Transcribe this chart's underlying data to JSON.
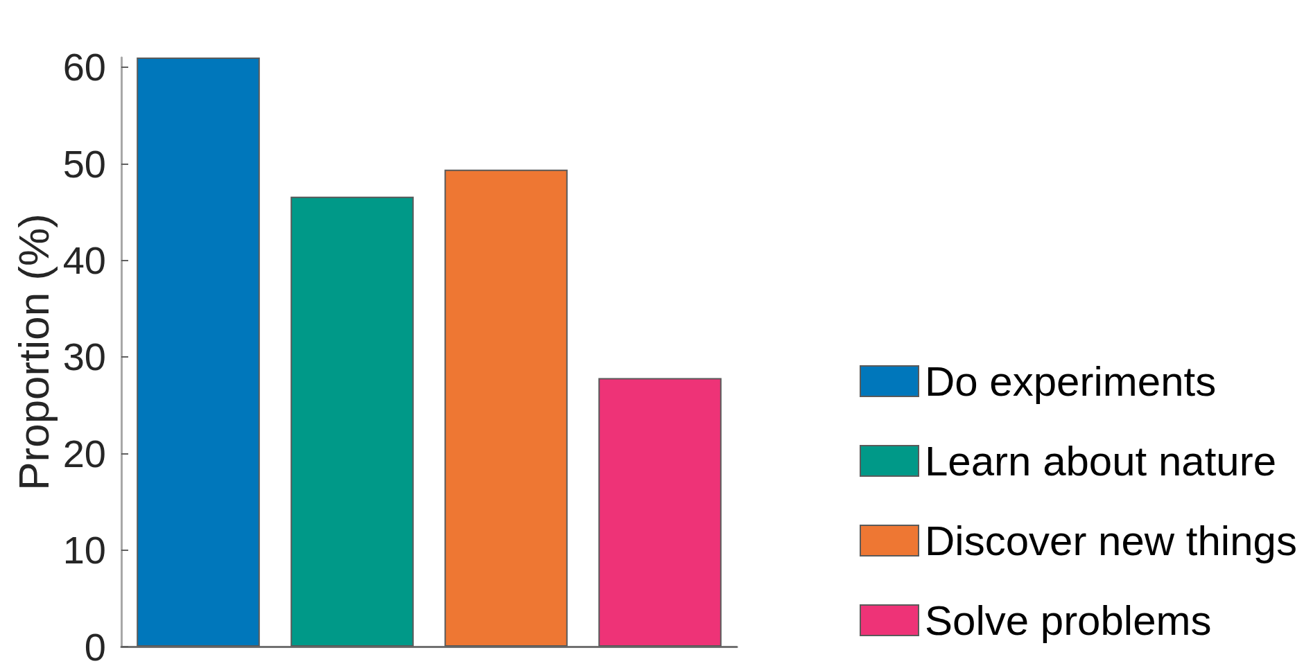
{
  "chart_data": {
    "type": "bar",
    "ylabel": "Proportion (%)",
    "categories": [
      null,
      null,
      null,
      null
    ],
    "series": [
      {
        "name": "Do experiments",
        "color": "#0077bb",
        "values": [
          61,
          null,
          null,
          null
        ]
      },
      {
        "name": "Learn about nature",
        "color": "#009988",
        "values": [
          null,
          46.6,
          null,
          null
        ]
      },
      {
        "name": "Discover new things",
        "color": "#ee7733",
        "values": [
          null,
          null,
          49.4,
          null
        ]
      },
      {
        "name": "Solve problems",
        "color": "#ee3377",
        "values": [
          null,
          null,
          null,
          27.8
        ]
      }
    ],
    "ylim": [
      0,
      61
    ],
    "yticks": [
      0,
      10,
      20,
      30,
      40,
      50,
      60
    ],
    "grid": false,
    "legend": "bottom right"
  }
}
